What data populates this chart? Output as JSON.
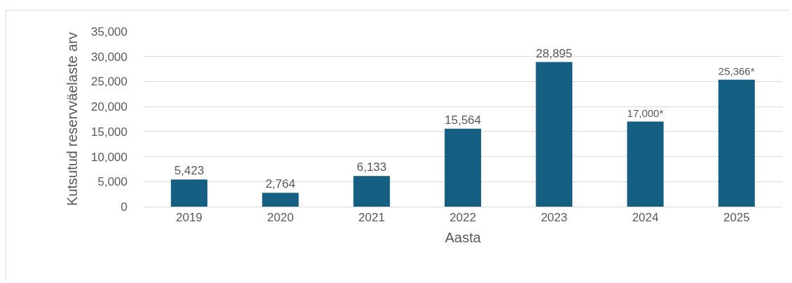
{
  "chart_data": {
    "type": "bar",
    "xlabel": "Aasta",
    "ylabel": "Kutsutud reservväelaste arv",
    "categories": [
      "2019",
      "2020",
      "2021",
      "2022",
      "2023",
      "2024",
      "2025"
    ],
    "values": [
      5423,
      2764,
      6133,
      15564,
      28895,
      17000,
      25366
    ],
    "value_labels": [
      "5,423",
      "2,764",
      "6,133",
      "15,564",
      "28,895",
      "17,000*",
      "25,366*"
    ],
    "color": "#155f82",
    "ylim": [
      0,
      35000
    ],
    "yticks": [
      {
        "value": 0,
        "label": "0"
      },
      {
        "value": 5000,
        "label": "5,000"
      },
      {
        "value": 10000,
        "label": "10,000"
      },
      {
        "value": 15000,
        "label": "15,000"
      },
      {
        "value": 20000,
        "label": "20,000"
      },
      {
        "value": 25000,
        "label": "25,000"
      },
      {
        "value": 30000,
        "label": "30,000"
      },
      {
        "value": 35000,
        "label": "35,000"
      }
    ],
    "grid": "y",
    "legend": false
  }
}
